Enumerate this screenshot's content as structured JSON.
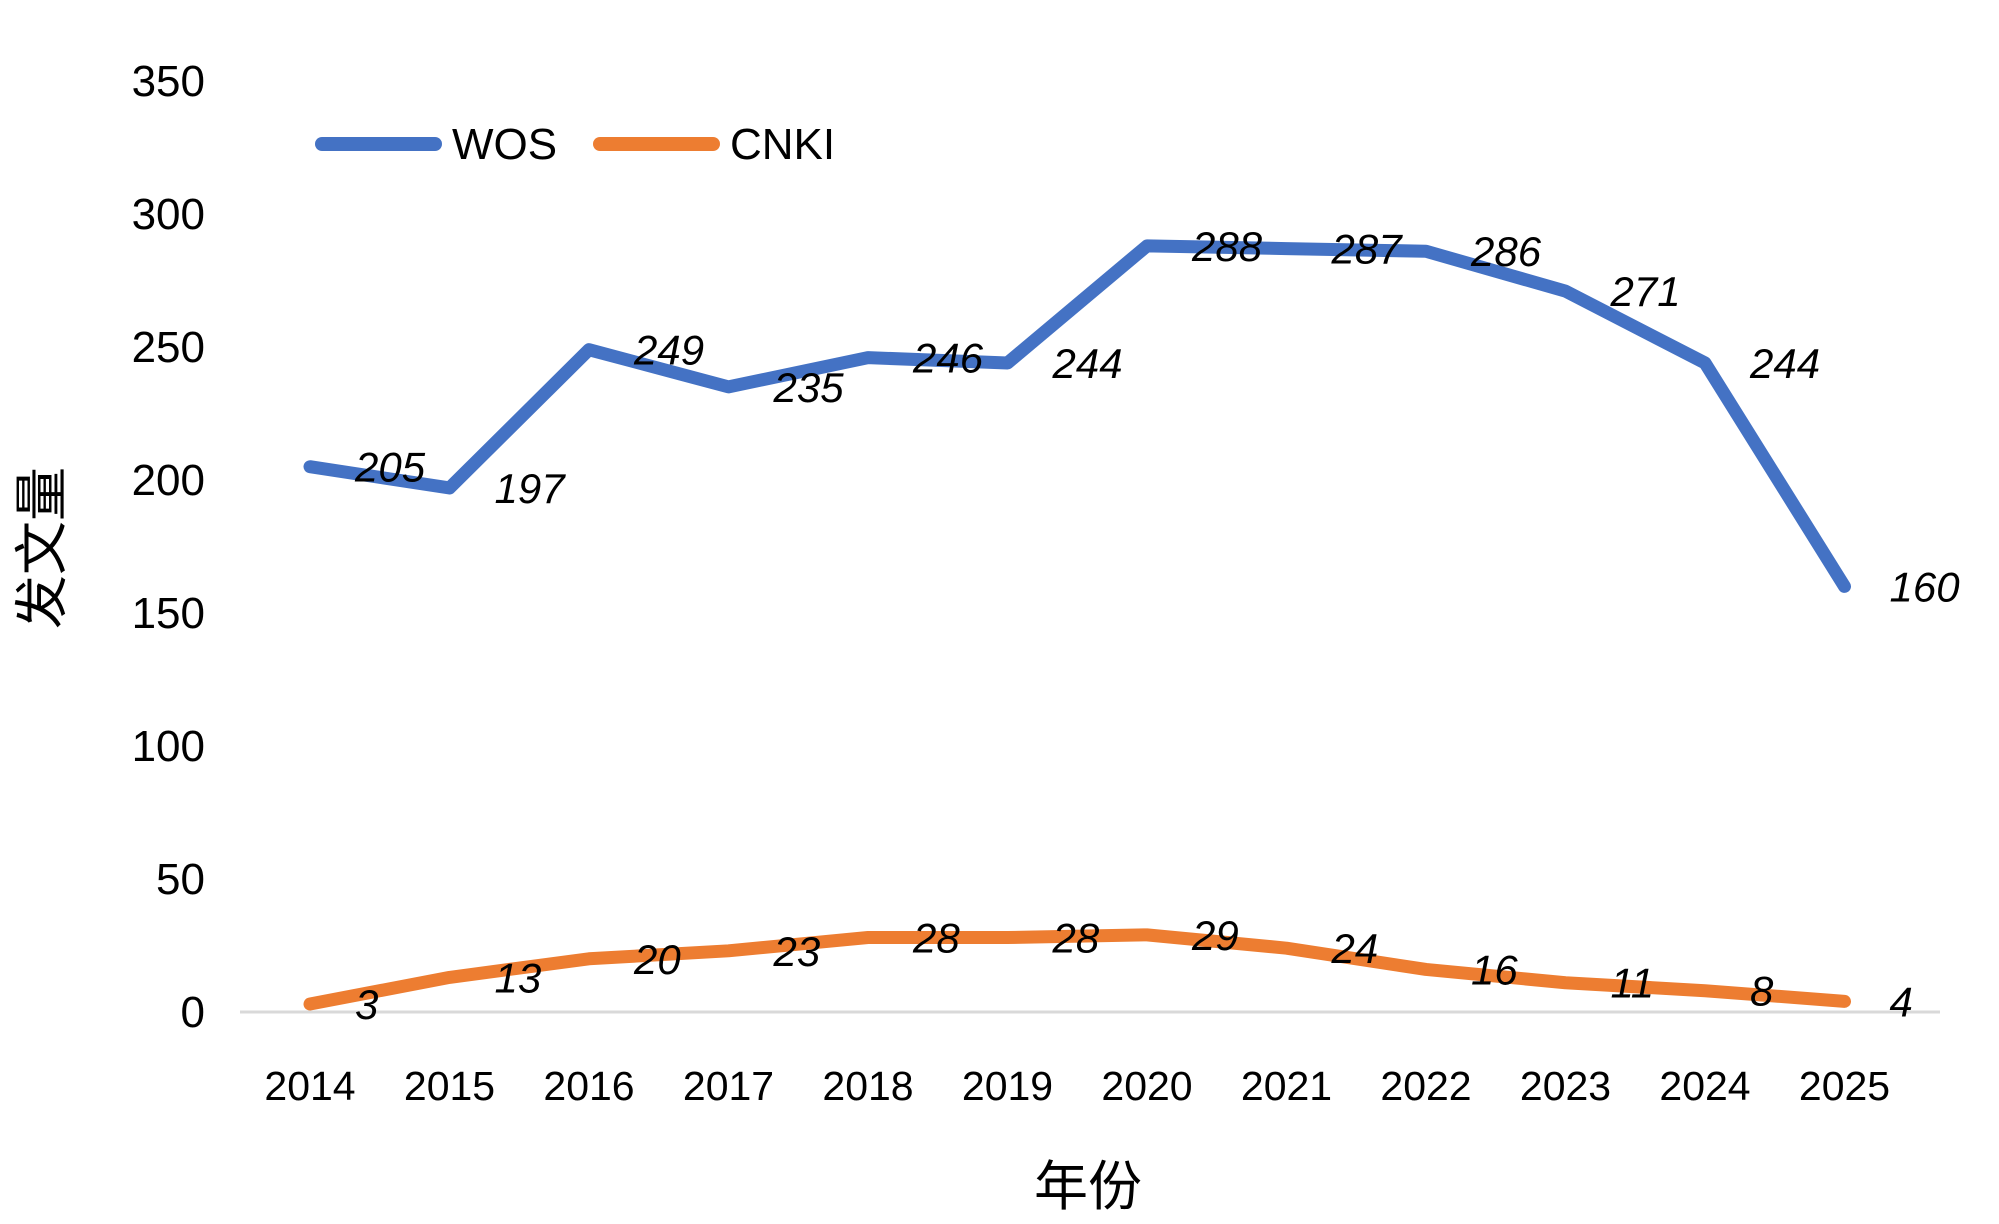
{
  "chart": {
    "colors": {
      "wos_blue": "#4472C4",
      "cnki_orange": "#ED7D31",
      "baseline_gray": "#D9D9D9",
      "text_black": "#000000"
    },
    "legend": {
      "wos_label": "WOS",
      "cnki_label": "CNKI"
    }
  },
  "chart_data": {
    "type": "line",
    "title": "",
    "xlabel": "年份",
    "ylabel": "发文量",
    "categories": [
      "2014",
      "2015",
      "2016",
      "2017",
      "2018",
      "2019",
      "2020",
      "2021",
      "2022",
      "2023",
      "2024",
      "2025"
    ],
    "series": [
      {
        "name": "WOS",
        "color": "#4472C4",
        "values": [
          205,
          197,
          249,
          235,
          246,
          244,
          288,
          287,
          286,
          271,
          244,
          160
        ]
      },
      {
        "name": "CNKI",
        "color": "#ED7D31",
        "values": [
          3,
          13,
          20,
          23,
          28,
          28,
          29,
          24,
          16,
          11,
          8,
          4
        ]
      }
    ],
    "ylim": [
      0,
      350
    ],
    "yticks": [
      0,
      50,
      100,
      150,
      200,
      250,
      300,
      350
    ],
    "grid": false,
    "data_labels": true,
    "data_label_position": "right",
    "data_label_style": "italic",
    "legend_position": "top-left",
    "baseline_color": "#D9D9D9",
    "background": "#FFFFFF"
  }
}
